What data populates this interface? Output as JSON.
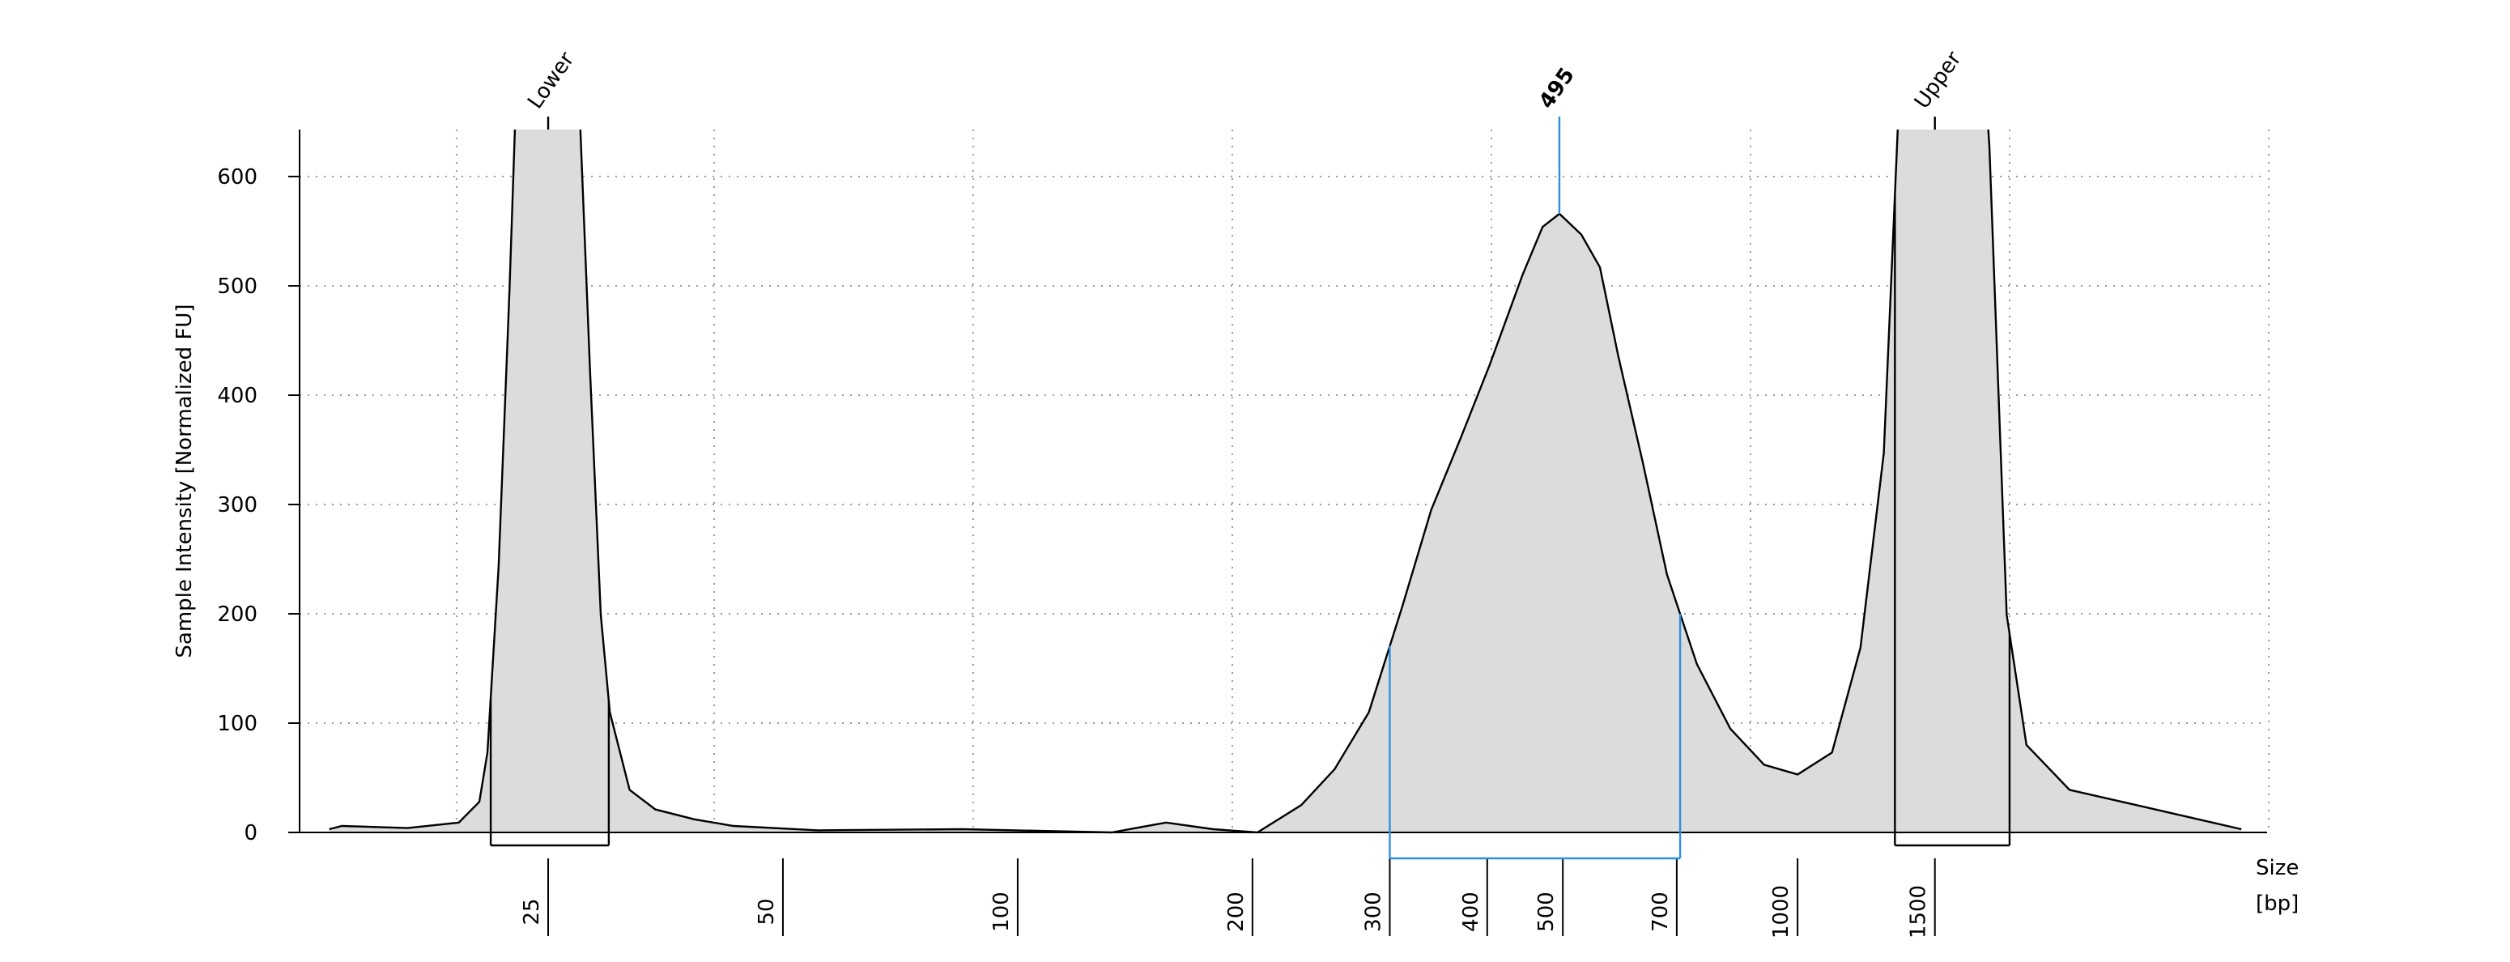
{
  "chart_data": {
    "type": "area",
    "ylabel": "Sample Intensity [Normalized FU]",
    "xlabel": [
      "Size",
      "[bp]"
    ],
    "xscale": "log",
    "xlim": [
      12,
      4000
    ],
    "ylim": [
      0,
      643
    ],
    "yticks": [
      0,
      100,
      200,
      300,
      400,
      500,
      600
    ],
    "xticks": [
      25,
      50,
      100,
      200,
      300,
      400,
      500,
      700,
      1000,
      1500
    ],
    "grid": true,
    "series": [
      {
        "color": "#000000",
        "fill": "#dcdcdc",
        "x": [
          13.1,
          13.6,
          16.5,
          19.2,
          20.4,
          20.9,
          21.6,
          22.3,
          22.7,
          23.3,
          26.2,
          27.5,
          28.3,
          29.2,
          30.0,
          31.8,
          34.3,
          38.5,
          43.2,
          55.5,
          85.1,
          132,
          155,
          178,
          203,
          231,
          255,
          282,
          311,
          339,
          370,
          403,
          444,
          471,
          495,
          528,
          558,
          589,
          633,
          680,
          743,
          820,
          906,
          1000,
          1107,
          1204,
          1290,
          1344,
          1402,
          1660,
          1762,
          1854,
          1966,
          2232,
          2757,
          3707
        ],
        "values": [
          3,
          6,
          4,
          9,
          28,
          73,
          243,
          495,
          658,
          1000,
          1000,
          643,
          421,
          199,
          110,
          39,
          21,
          12,
          6,
          2,
          3,
          0,
          9,
          3,
          0,
          25,
          58,
          110,
          206,
          295,
          361,
          428,
          510,
          554,
          566,
          547,
          517,
          436,
          339,
          236,
          154,
          95,
          62,
          53,
          73,
          169,
          347,
          643,
          900,
          900,
          628,
          199,
          80,
          39,
          24,
          3
        ]
      }
    ],
    "markers": [
      {
        "label": "Lower",
        "x": 25,
        "region": [
          21.1,
          29.9
        ],
        "color": "#000000"
      },
      {
        "label": "495",
        "x": 495,
        "region": [
          300,
          707
        ],
        "color": "#2e8fe0"
      },
      {
        "label": "Upper",
        "x": 1500,
        "region": [
          1333,
          1870
        ],
        "color": "#000000"
      }
    ]
  }
}
